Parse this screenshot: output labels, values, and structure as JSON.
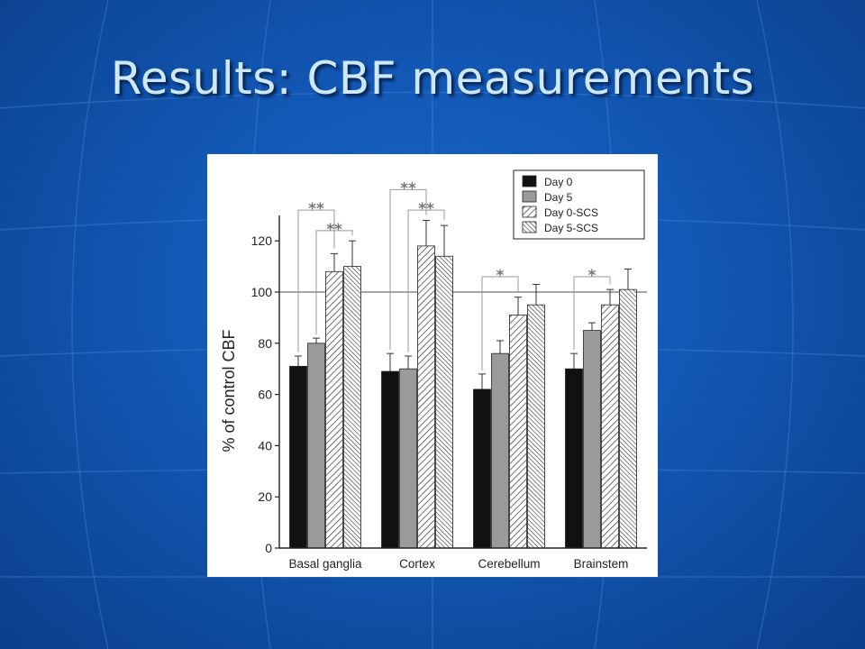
{
  "slide": {
    "title": "Results: CBF measurements"
  },
  "colors": {
    "background": "#1459b8",
    "title": "#cfe8f6",
    "day0": "#111111",
    "day5": "#9a9a9a",
    "reference_line": "#888888"
  },
  "chart_data": {
    "type": "bar",
    "title": "",
    "ylabel": "% of control CBF",
    "xlabel": "",
    "categories": [
      "Basal ganglia",
      "Cortex",
      "Cerebellum",
      "Brainstem"
    ],
    "ylim": [
      0,
      130
    ],
    "yticks": [
      0,
      20,
      40,
      60,
      80,
      100,
      120
    ],
    "reference_line": 100,
    "legend": {
      "position": "top-right",
      "entries": [
        "Day 0",
        "Day 5",
        "Day 0-SCS",
        "Day 5-SCS"
      ]
    },
    "series": [
      {
        "name": "Day 0",
        "fill": "solid-black",
        "values": [
          71,
          69,
          62,
          70
        ],
        "errors": [
          4,
          7,
          6,
          6
        ]
      },
      {
        "name": "Day 5",
        "fill": "solid-gray",
        "values": [
          80,
          70,
          76,
          85
        ],
        "errors": [
          2,
          5,
          5,
          3
        ]
      },
      {
        "name": "Day 0-SCS",
        "fill": "hatch",
        "values": [
          108,
          118,
          91,
          95
        ],
        "errors": [
          7,
          10,
          7,
          6
        ]
      },
      {
        "name": "Day 5-SCS",
        "fill": "hatch-dense",
        "values": [
          110,
          114,
          95,
          101
        ],
        "errors": [
          10,
          12,
          8,
          8
        ]
      }
    ],
    "annotations": [
      {
        "category": "Basal ganglia",
        "from": "Day 0",
        "to": "Day 0-SCS",
        "label": "**",
        "level": 132
      },
      {
        "category": "Basal ganglia",
        "from": "Day 5",
        "to": "Day 5-SCS",
        "label": "**",
        "level": 124
      },
      {
        "category": "Cortex",
        "from": "Day 0",
        "to": "Day 0-SCS",
        "label": "**",
        "level": 140
      },
      {
        "category": "Cortex",
        "from": "Day 5",
        "to": "Day 5-SCS",
        "label": "**",
        "level": 132
      },
      {
        "category": "Cerebellum",
        "from": "Day 0",
        "to": "Day 0-SCS",
        "label": "*",
        "level": 106
      },
      {
        "category": "Brainstem",
        "from": "Day 0",
        "to": "Day 0-SCS",
        "label": "*",
        "level": 106
      }
    ]
  }
}
